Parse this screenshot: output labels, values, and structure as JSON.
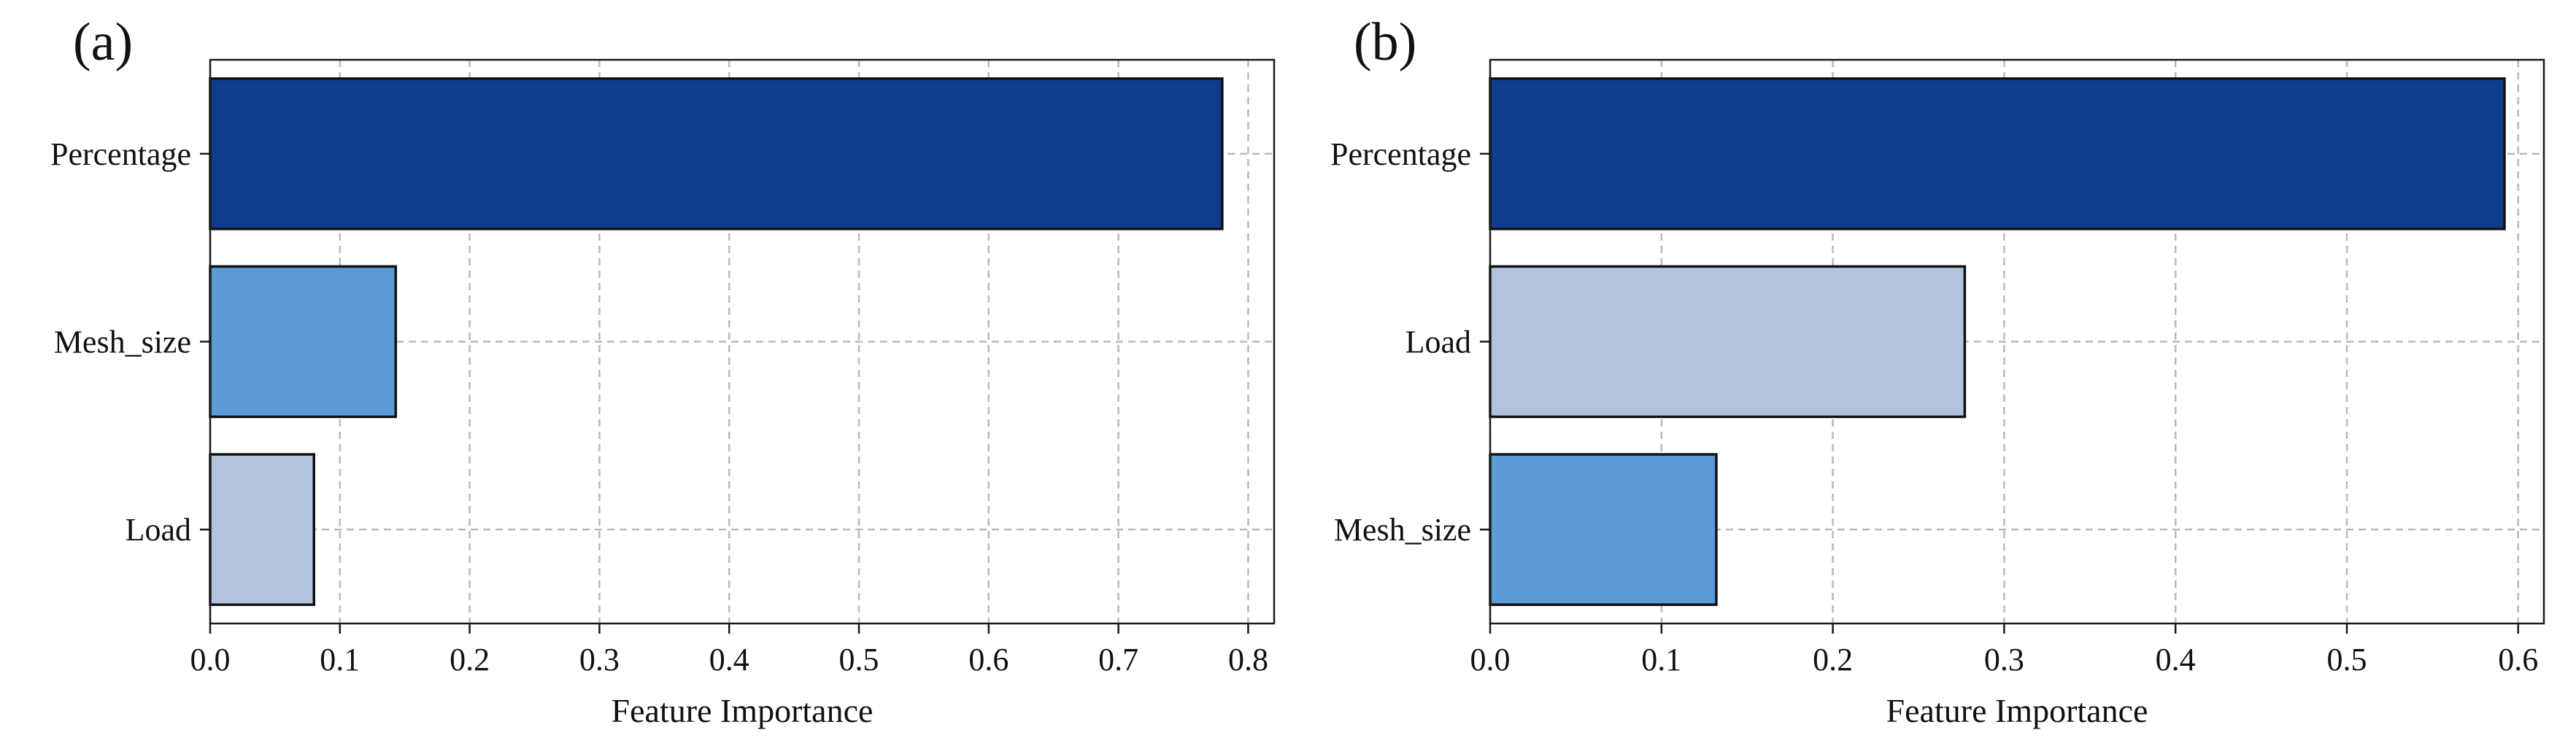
{
  "colors": {
    "Percentage": "#0e3d8e",
    "Mesh_size": "#5b9bd5",
    "Load": "#b0c4de"
  },
  "chart_data": [
    {
      "type": "bar",
      "orientation": "horizontal",
      "panel_label": "(a)",
      "title": "",
      "xlabel": "Feature Importance",
      "ylabel": "",
      "categories": [
        "Percentage",
        "Mesh_size",
        "Load"
      ],
      "values": [
        0.78,
        0.143,
        0.08
      ],
      "xlim": [
        0.0,
        0.82
      ],
      "xticks": [
        "0.0",
        "0.1",
        "0.2",
        "0.3",
        "0.4",
        "0.5",
        "0.6",
        "0.7",
        "0.8"
      ],
      "grid": true
    },
    {
      "type": "bar",
      "orientation": "horizontal",
      "panel_label": "(b)",
      "title": "",
      "xlabel": "Feature Importance",
      "ylabel": "",
      "categories": [
        "Percentage",
        "Load",
        "Mesh_size"
      ],
      "values": [
        0.592,
        0.277,
        0.132
      ],
      "xlim": [
        0.0,
        0.615
      ],
      "xticks": [
        "0.0",
        "0.1",
        "0.2",
        "0.3",
        "0.4",
        "0.5",
        "0.6"
      ],
      "grid": true
    }
  ]
}
